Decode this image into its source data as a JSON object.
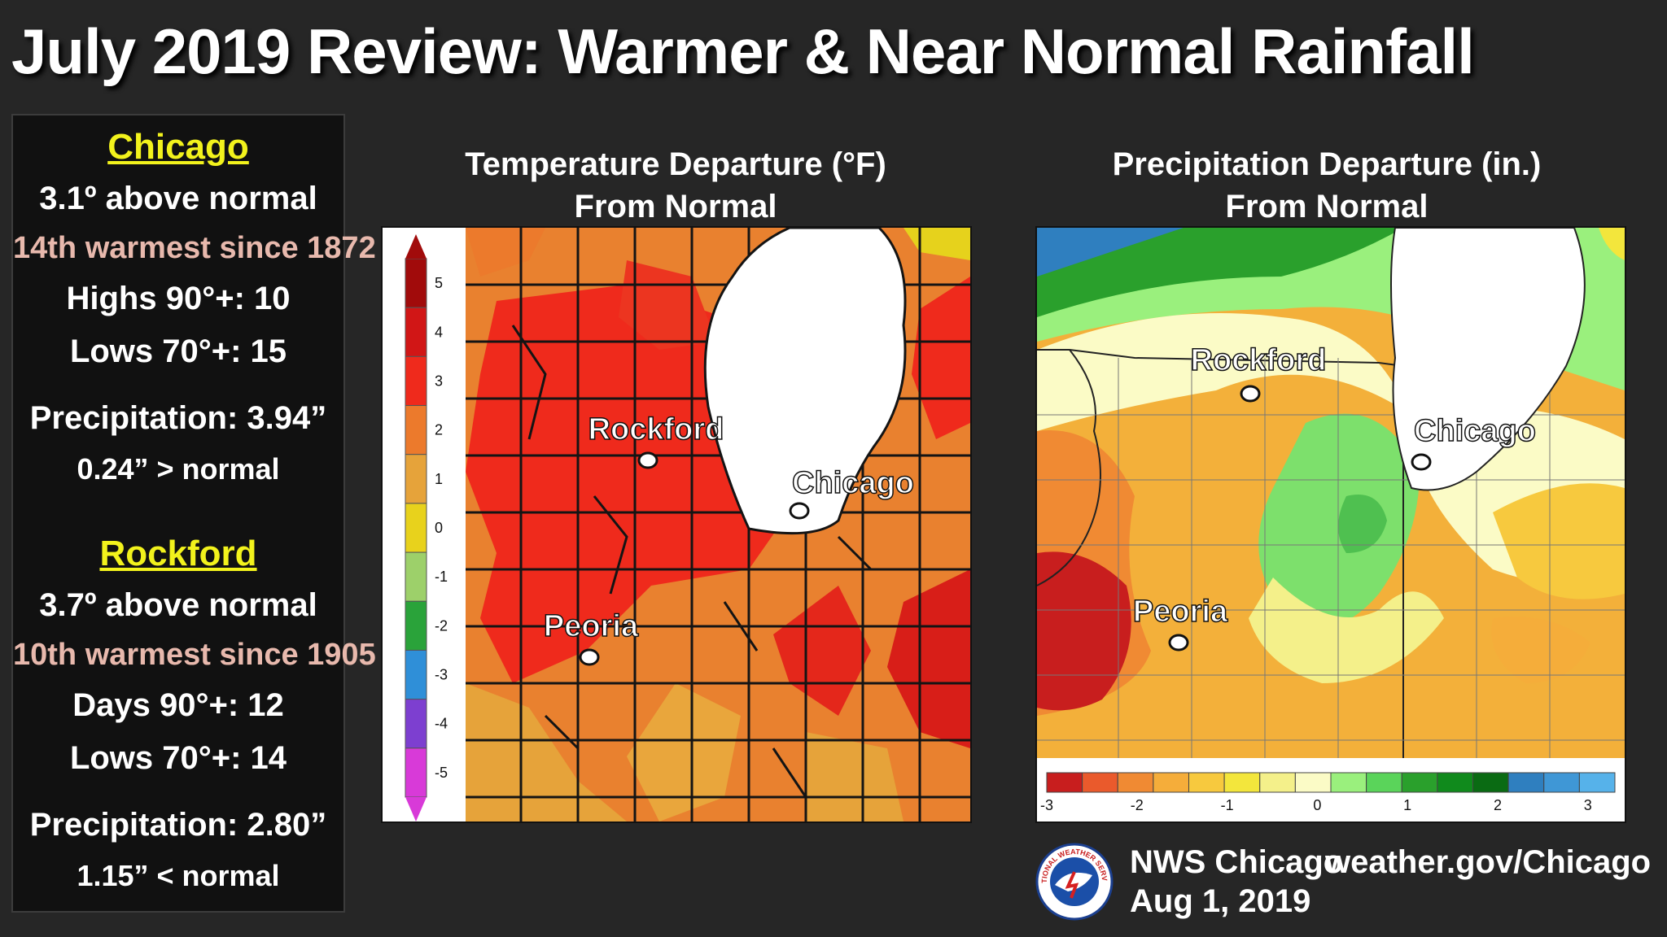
{
  "title": "July 2019 Review:  Warmer & Near Normal Rainfall",
  "chicago": {
    "name": "Chicago",
    "temp": "3.1º above normal",
    "rank": "14th warmest since 1872",
    "highs": "Highs 90°+:  10",
    "lows": "Lows 70°+:  15",
    "precip": "Precipitation:  3.94”",
    "precip_dep": "0.24” > normal"
  },
  "rockford": {
    "name": "Rockford",
    "temp": "3.7º above normal",
    "rank": "10th warmest since 1905",
    "highs": "Days 90°+:  12",
    "lows": "Lows 70°+:  14",
    "precip": "Precipitation:  2.80”",
    "precip_dep": "1.15” < normal"
  },
  "temp_map": {
    "title_line1": "Temperature Departure (°F)",
    "title_line2": "From Normal",
    "scale_labels": [
      "5",
      "4",
      "3",
      "2",
      "1",
      "0",
      "-1",
      "-2",
      "-3",
      "-4",
      "-5"
    ],
    "scale_colors": [
      "#a10b0b",
      "#d11616",
      "#ef2a1c",
      "#ec7a2c",
      "#e6a33a",
      "#e8d21c",
      "#9dd06a",
      "#2aa33a",
      "#2f8fd8",
      "#7d3fd0",
      "#d83ad8"
    ],
    "cities": [
      "Rockford",
      "Chicago",
      "Peoria"
    ]
  },
  "precip_map": {
    "title_line1": "Precipitation Departure (in.)",
    "title_line2": "From Normal",
    "scale_labels": [
      "-3",
      "-2",
      "-1",
      "0",
      "1",
      "2",
      "3"
    ],
    "scale_colors": [
      "#c81e1e",
      "#ea5a2c",
      "#f08a33",
      "#f5ad3a",
      "#f7c93e",
      "#f3e63c",
      "#f4f08a",
      "#fbfbc6",
      "#9af07d",
      "#5ad45a",
      "#2aa02c",
      "#108a1c",
      "#0a6b13",
      "#2f7fbf",
      "#3f97d6",
      "#56b2ea"
    ],
    "cities": [
      "Rockford",
      "Chicago",
      "Peoria"
    ]
  },
  "footer": {
    "org": "NWS Chicago",
    "url": "weather.gov/Chicago",
    "date": "Aug 1, 2019",
    "logo_text": "NATIONAL WEATHER SERVICE"
  }
}
